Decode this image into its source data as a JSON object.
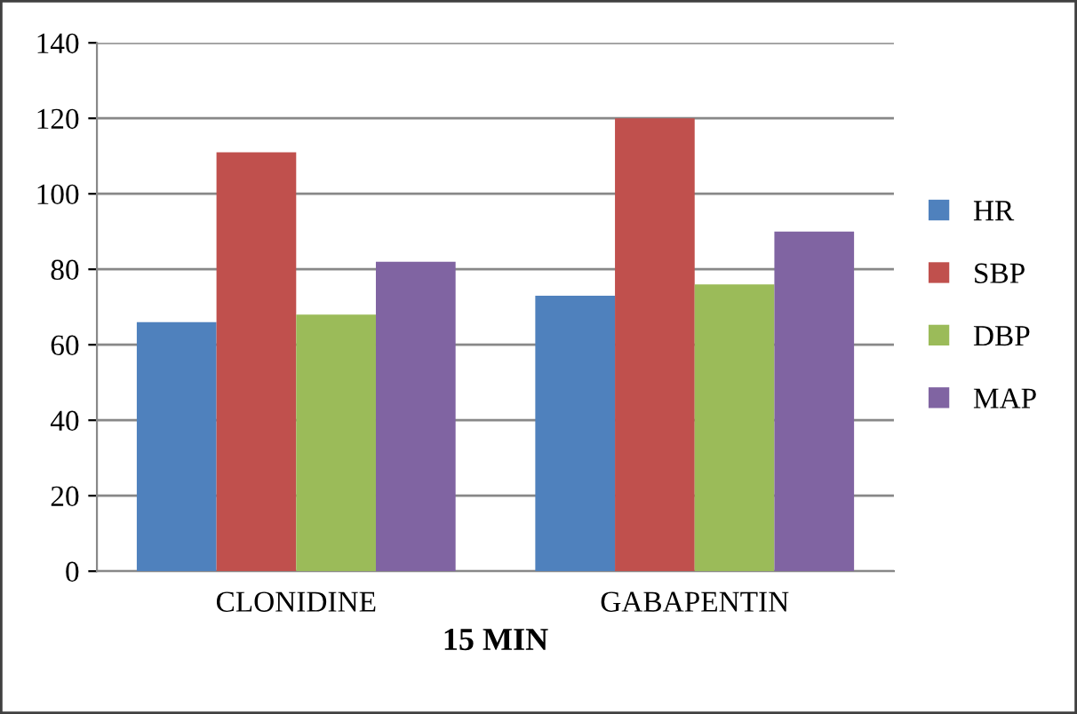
{
  "chart_data": {
    "type": "bar",
    "xlabel": "15 MIN",
    "categories": [
      "CLONIDINE",
      "GABAPENTIN"
    ],
    "series": [
      {
        "name": "HR",
        "color": "#4f81bd",
        "values": [
          66,
          73
        ]
      },
      {
        "name": "SBP",
        "color": "#c0504d",
        "values": [
          111,
          120
        ]
      },
      {
        "name": "DBP",
        "color": "#9bbb59",
        "values": [
          68,
          76
        ]
      },
      {
        "name": "MAP",
        "color": "#8064a2",
        "values": [
          82,
          90
        ]
      }
    ],
    "ylim": [
      0,
      140
    ],
    "yticks": [
      0,
      20,
      40,
      60,
      80,
      100,
      120,
      140
    ],
    "grid": "y",
    "legend": "right"
  }
}
